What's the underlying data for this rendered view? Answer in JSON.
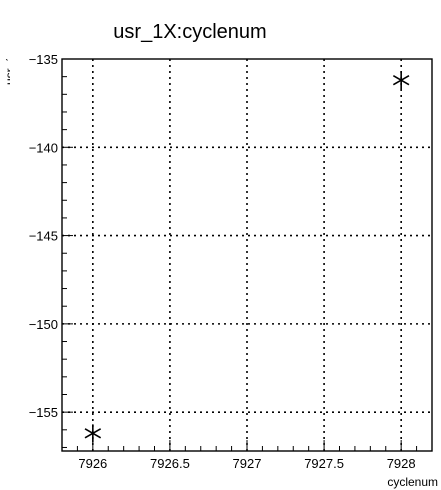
{
  "chart_data": {
    "type": "scatter",
    "title": "usr_1X:cyclenum",
    "xlabel": "cyclenum",
    "ylabel": "usr_1X",
    "xlim": [
      7925.8,
      7928.2
    ],
    "ylim": [
      -157.2,
      -135
    ],
    "x_ticks": [
      7926,
      7926.5,
      7927,
      7927.5,
      7928
    ],
    "x_tick_labels": [
      "7926",
      "7926.5",
      "7927",
      "7927.5",
      "7928"
    ],
    "y_ticks": [
      -155,
      -150,
      -145,
      -140,
      -135
    ],
    "y_tick_labels": [
      "−155",
      "−150",
      "−145",
      "−140",
      "−135"
    ],
    "grid": true,
    "grid_style": "dotted",
    "marker": "asterisk",
    "points": [
      {
        "x": 7926,
        "y": -156.2
      },
      {
        "x": 7928,
        "y": -136.2
      }
    ]
  }
}
